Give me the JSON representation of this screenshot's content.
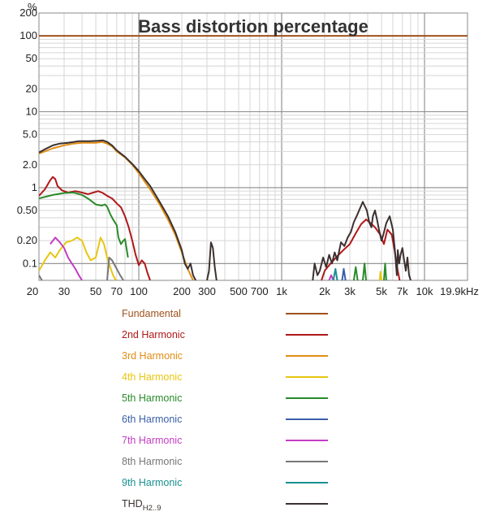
{
  "chart_data": {
    "type": "line",
    "title": "Bass distortion percentage",
    "ylabel": "%",
    "xscale": "log",
    "yscale": "log",
    "xlim": [
      20,
      20000
    ],
    "ylim": [
      0.06,
      200
    ],
    "grid": true,
    "x_ticks": [
      {
        "value": 20,
        "label": "20"
      },
      {
        "value": 30,
        "label": "30"
      },
      {
        "value": 50,
        "label": "50"
      },
      {
        "value": 70,
        "label": "70"
      },
      {
        "value": 100,
        "label": "100"
      },
      {
        "value": 200,
        "label": "200"
      },
      {
        "value": 300,
        "label": "300"
      },
      {
        "value": 500,
        "label": "500"
      },
      {
        "value": 700,
        "label": "700"
      },
      {
        "value": 1000,
        "label": "1k"
      },
      {
        "value": 2000,
        "label": "2k"
      },
      {
        "value": 3000,
        "label": "3k"
      },
      {
        "value": 5000,
        "label": "5k"
      },
      {
        "value": 7000,
        "label": "7k"
      },
      {
        "value": 10000,
        "label": "10k"
      },
      {
        "value": 19900,
        "label": "19.9kHz"
      }
    ],
    "y_ticks": [
      {
        "value": 200,
        "label": "200"
      },
      {
        "value": 100,
        "label": "100"
      },
      {
        "value": 50,
        "label": "50"
      },
      {
        "value": 20,
        "label": "20"
      },
      {
        "value": 10,
        "label": "10"
      },
      {
        "value": 5,
        "label": "5.0"
      },
      {
        "value": 2,
        "label": "2.0"
      },
      {
        "value": 1,
        "label": "1"
      },
      {
        "value": 0.5,
        "label": "0.50"
      },
      {
        "value": 0.2,
        "label": "0.20"
      },
      {
        "value": 0.1,
        "label": "0.1"
      }
    ],
    "legend_position": "bottom",
    "series": [
      {
        "name": "Fundamental",
        "color": "#a0521d",
        "points": [
          [
            20,
            100
          ],
          [
            20000,
            100
          ]
        ]
      },
      {
        "name": "2nd Harmonic",
        "color": "#b01818",
        "points": [
          [
            20,
            0.78
          ],
          [
            22,
            0.95
          ],
          [
            24,
            1.25
          ],
          [
            25,
            1.38
          ],
          [
            26,
            1.3
          ],
          [
            27,
            1.05
          ],
          [
            29,
            0.92
          ],
          [
            32,
            0.86
          ],
          [
            36,
            0.9
          ],
          [
            40,
            0.86
          ],
          [
            44,
            0.82
          ],
          [
            48,
            0.86
          ],
          [
            52,
            0.9
          ],
          [
            56,
            0.85
          ],
          [
            60,
            0.78
          ],
          [
            65,
            0.72
          ],
          [
            70,
            0.62
          ],
          [
            75,
            0.55
          ],
          [
            80,
            0.42
          ],
          [
            85,
            0.3
          ],
          [
            90,
            0.2
          ],
          [
            95,
            0.13
          ],
          [
            100,
            0.095
          ],
          [
            105,
            0.11
          ],
          [
            110,
            0.1
          ],
          [
            115,
            0.075
          ],
          [
            120,
            0.06
          ]
        ],
        "segments": [
          [
            [
              1900,
              0.06
            ],
            [
              2000,
              0.08
            ],
            [
              2200,
              0.1
            ],
            [
              2500,
              0.13
            ],
            [
              2800,
              0.16
            ],
            [
              3000,
              0.18
            ],
            [
              3300,
              0.25
            ],
            [
              3600,
              0.33
            ],
            [
              3900,
              0.38
            ],
            [
              4200,
              0.34
            ],
            [
              4500,
              0.3
            ],
            [
              4900,
              0.24
            ],
            [
              5200,
              0.18
            ],
            [
              5500,
              0.28
            ],
            [
              5900,
              0.24
            ],
            [
              6200,
              0.14
            ],
            [
              6500,
              0.08
            ],
            [
              6700,
              0.06
            ]
          ]
        ]
      },
      {
        "name": "3rd Harmonic",
        "color": "#e08e14",
        "points": [
          [
            20,
            2.8
          ],
          [
            25,
            3.3
          ],
          [
            30,
            3.6
          ],
          [
            35,
            3.8
          ],
          [
            40,
            3.9
          ],
          [
            45,
            3.9
          ],
          [
            50,
            3.9
          ],
          [
            55,
            4.0
          ],
          [
            60,
            3.8
          ],
          [
            65,
            3.5
          ],
          [
            70,
            3.0
          ],
          [
            80,
            2.5
          ],
          [
            90,
            2.0
          ],
          [
            100,
            1.55
          ],
          [
            120,
            0.95
          ],
          [
            140,
            0.6
          ],
          [
            160,
            0.38
          ],
          [
            180,
            0.24
          ],
          [
            200,
            0.14
          ],
          [
            220,
            0.085
          ],
          [
            240,
            0.06
          ]
        ]
      },
      {
        "name": "4th Harmonic",
        "color": "#e8c610",
        "points": [
          [
            20,
            0.08
          ],
          [
            22,
            0.11
          ],
          [
            24,
            0.14
          ],
          [
            26,
            0.12
          ],
          [
            28,
            0.15
          ],
          [
            31,
            0.19
          ],
          [
            34,
            0.2
          ],
          [
            37,
            0.22
          ],
          [
            40,
            0.2
          ],
          [
            43,
            0.14
          ],
          [
            46,
            0.11
          ],
          [
            50,
            0.12
          ],
          [
            54,
            0.22
          ],
          [
            57,
            0.18
          ],
          [
            60,
            0.12
          ],
          [
            63,
            0.09
          ],
          [
            66,
            0.07
          ],
          [
            69,
            0.06
          ]
        ],
        "segments": [
          [
            [
              4850,
              0.06
            ],
            [
              4920,
              0.078
            ],
            [
              5000,
              0.06
            ]
          ]
        ]
      },
      {
        "name": "5th Harmonic",
        "color": "#2a8a2a",
        "points": [
          [
            20,
            0.72
          ],
          [
            25,
            0.8
          ],
          [
            30,
            0.85
          ],
          [
            35,
            0.86
          ],
          [
            40,
            0.8
          ],
          [
            45,
            0.7
          ],
          [
            50,
            0.6
          ],
          [
            55,
            0.58
          ],
          [
            58,
            0.6
          ],
          [
            60,
            0.56
          ],
          [
            63,
            0.45
          ],
          [
            66,
            0.38
          ],
          [
            70,
            0.32
          ],
          [
            72,
            0.22
          ],
          [
            75,
            0.18
          ],
          [
            78,
            0.2
          ],
          [
            80,
            0.21
          ],
          [
            82,
            0.16
          ],
          [
            84,
            0.12
          ]
        ],
        "segments": [
          [
            [
              3200,
              0.06
            ],
            [
              3300,
              0.09
            ],
            [
              3400,
              0.06
            ]
          ],
          [
            [
              3700,
              0.06
            ],
            [
              3800,
              0.1
            ],
            [
              3900,
              0.06
            ]
          ],
          [
            [
              5200,
              0.06
            ],
            [
              5300,
              0.1
            ],
            [
              5400,
              0.06
            ]
          ]
        ]
      },
      {
        "name": "6th Harmonic",
        "color": "#3a5fa8",
        "points": [
          [
            2650,
            0.06
          ],
          [
            2720,
            0.085
          ],
          [
            2800,
            0.06
          ]
        ]
      },
      {
        "name": "7th Harmonic",
        "color": "#c43cc4",
        "points": [
          [
            24,
            0.18
          ],
          [
            26,
            0.22
          ],
          [
            28,
            0.19
          ],
          [
            30,
            0.16
          ],
          [
            32,
            0.12
          ],
          [
            34,
            0.1
          ],
          [
            36,
            0.085
          ],
          [
            38,
            0.07
          ],
          [
            40,
            0.06
          ]
        ],
        "segments": [
          [
            [
              2150,
              0.06
            ],
            [
              2220,
              0.07
            ],
            [
              2300,
              0.06
            ]
          ]
        ]
      },
      {
        "name": "8th Harmonic",
        "color": "#777777",
        "points": [
          [
            20,
            0.07
          ],
          [
            21,
            0.06
          ]
        ],
        "segments": [
          [
            [
              60,
              0.06
            ],
            [
              62,
              0.12
            ],
            [
              65,
              0.11
            ],
            [
              70,
              0.085
            ],
            [
              74,
              0.07
            ],
            [
              78,
              0.06
            ]
          ]
        ]
      },
      {
        "name": "9th Harmonic",
        "color": "#1a9090",
        "points": [
          [
            2300,
            0.06
          ],
          [
            2380,
            0.085
          ],
          [
            2450,
            0.06
          ]
        ]
      },
      {
        "name": "THD",
        "name_sub": "H2..9",
        "color": "#3c3030",
        "points": [
          [
            20,
            2.9
          ],
          [
            22,
            3.2
          ],
          [
            25,
            3.6
          ],
          [
            28,
            3.8
          ],
          [
            32,
            3.9
          ],
          [
            38,
            4.1
          ],
          [
            45,
            4.1
          ],
          [
            52,
            4.15
          ],
          [
            56,
            4.2
          ],
          [
            60,
            4.0
          ],
          [
            65,
            3.6
          ],
          [
            70,
            3.1
          ],
          [
            80,
            2.55
          ],
          [
            90,
            2.05
          ],
          [
            100,
            1.65
          ],
          [
            110,
            1.3
          ],
          [
            120,
            1.05
          ],
          [
            140,
            0.65
          ],
          [
            160,
            0.42
          ],
          [
            180,
            0.26
          ],
          [
            200,
            0.15
          ],
          [
            210,
            0.1
          ],
          [
            220,
            0.085
          ],
          [
            230,
            0.1
          ],
          [
            240,
            0.07
          ],
          [
            250,
            0.06
          ]
        ],
        "segments": [
          [
            [
              300,
              0.06
            ],
            [
              310,
              0.08
            ],
            [
              320,
              0.19
            ],
            [
              330,
              0.16
            ],
            [
              340,
              0.09
            ],
            [
              350,
              0.06
            ]
          ],
          [
            [
              1650,
              0.06
            ],
            [
              1700,
              0.1
            ],
            [
              1780,
              0.07
            ],
            [
              1850,
              0.08
            ],
            [
              1950,
              0.12
            ],
            [
              2050,
              0.09
            ],
            [
              2150,
              0.13
            ],
            [
              2250,
              0.1
            ],
            [
              2350,
              0.14
            ],
            [
              2450,
              0.11
            ],
            [
              2600,
              0.19
            ],
            [
              2750,
              0.17
            ],
            [
              2900,
              0.22
            ],
            [
              3050,
              0.26
            ],
            [
              3200,
              0.35
            ],
            [
              3400,
              0.45
            ],
            [
              3700,
              0.65
            ],
            [
              3800,
              0.58
            ],
            [
              3950,
              0.5
            ],
            [
              4100,
              0.35
            ],
            [
              4250,
              0.3
            ],
            [
              4350,
              0.42
            ],
            [
              4500,
              0.5
            ],
            [
              4650,
              0.38
            ],
            [
              4800,
              0.28
            ],
            [
              5000,
              0.2
            ],
            [
              5150,
              0.24
            ],
            [
              5400,
              0.34
            ],
            [
              5700,
              0.42
            ],
            [
              6000,
              0.28
            ],
            [
              6200,
              0.15
            ],
            [
              6400,
              0.07
            ],
            [
              6500,
              0.15
            ],
            [
              6650,
              0.1
            ],
            [
              6800,
              0.13
            ],
            [
              7000,
              0.16
            ],
            [
              7200,
              0.11
            ],
            [
              7400,
              0.08
            ],
            [
              7600,
              0.12
            ],
            [
              7800,
              0.07
            ],
            [
              8000,
              0.06
            ]
          ]
        ]
      }
    ]
  }
}
